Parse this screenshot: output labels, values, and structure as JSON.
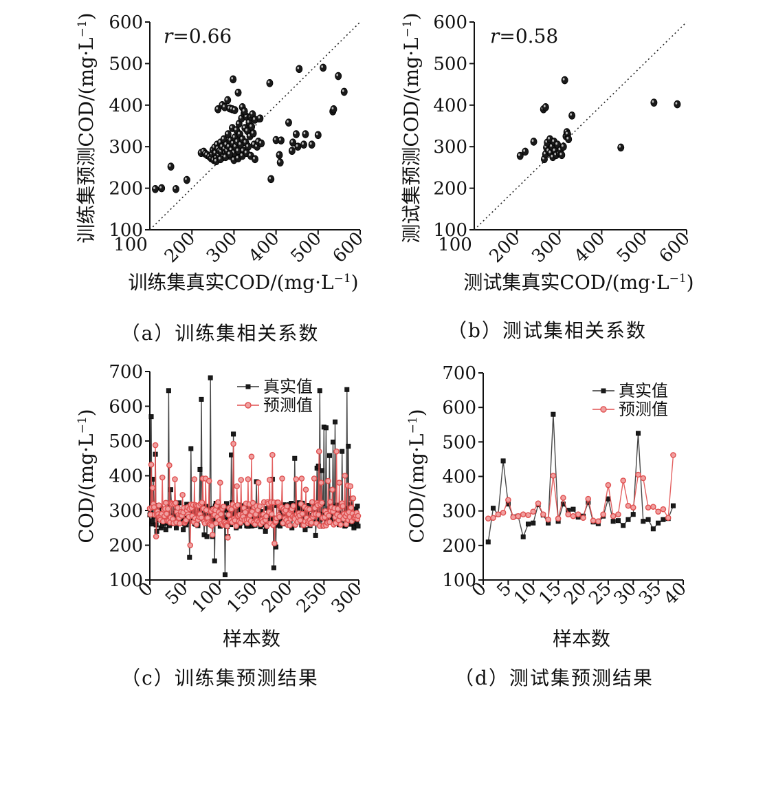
{
  "chart_data": [
    {
      "type": "scatter",
      "caption": "（a）训练集相关系数",
      "r_label": "r",
      "r_value": "=0.66",
      "xlabel": "训练集真实COD/(mg·L",
      "ylabel": "训练集预测COD/(mg·L",
      "unit_superscript": "−1",
      "unit_close": ")",
      "xlim": [
        100,
        600
      ],
      "ylim": [
        100,
        600
      ],
      "xticks": [
        "200",
        "300",
        "400",
        "500",
        "600"
      ],
      "yticks": [
        "100",
        "200",
        "300",
        "400",
        "500",
        "600"
      ],
      "diagonal": true,
      "points": [
        [
          113,
          198
        ],
        [
          128,
          200
        ],
        [
          150,
          252
        ],
        [
          162,
          198
        ],
        [
          188,
          220
        ],
        [
          222,
          285
        ],
        [
          228,
          288
        ],
        [
          232,
          283
        ],
        [
          236,
          280
        ],
        [
          242,
          276
        ],
        [
          246,
          272
        ],
        [
          248,
          282
        ],
        [
          250,
          292
        ],
        [
          252,
          268
        ],
        [
          254,
          298
        ],
        [
          256,
          285
        ],
        [
          258,
          272
        ],
        [
          260,
          305
        ],
        [
          262,
          295
        ],
        [
          264,
          280
        ],
        [
          266,
          290
        ],
        [
          268,
          310
        ],
        [
          270,
          288
        ],
        [
          272,
          300
        ],
        [
          274,
          275
        ],
        [
          276,
          318
        ],
        [
          278,
          295
        ],
        [
          280,
          285
        ],
        [
          282,
          305
        ],
        [
          284,
          290
        ],
        [
          286,
          330
        ],
        [
          288,
          300
        ],
        [
          290,
          278
        ],
        [
          292,
          315
        ],
        [
          294,
          292
        ],
        [
          296,
          345
        ],
        [
          298,
          308
        ],
        [
          300,
          285
        ],
        [
          302,
          322
        ],
        [
          304,
          300
        ],
        [
          306,
          340
        ],
        [
          308,
          312
        ],
        [
          310,
          290
        ],
        [
          312,
          355
        ],
        [
          314,
          330
        ],
        [
          316,
          305
        ],
        [
          318,
          368
        ],
        [
          320,
          318
        ],
        [
          322,
          290
        ],
        [
          324,
          380
        ],
        [
          326,
          345
        ],
        [
          328,
          310
        ],
        [
          330,
          372
        ],
        [
          332,
          338
        ],
        [
          334,
          300
        ],
        [
          336,
          358
        ],
        [
          338,
          325
        ],
        [
          340,
          372
        ],
        [
          342,
          348
        ],
        [
          344,
          378
        ],
        [
          346,
          332
        ],
        [
          348,
          305
        ],
        [
          350,
          365
        ],
        [
          262,
          390
        ],
        [
          272,
          400
        ],
        [
          278,
          395
        ],
        [
          285,
          412
        ],
        [
          290,
          392
        ],
        [
          296,
          390
        ],
        [
          302,
          388
        ],
        [
          298,
          462
        ],
        [
          310,
          430
        ],
        [
          320,
          395
        ],
        [
          325,
          385
        ],
        [
          258,
          265
        ],
        [
          268,
          270
        ],
        [
          280,
          275
        ],
        [
          290,
          282
        ],
        [
          300,
          268
        ],
        [
          310,
          272
        ],
        [
          320,
          278
        ],
        [
          330,
          285
        ],
        [
          340,
          278
        ],
        [
          350,
          270
        ],
        [
          355,
          300
        ],
        [
          358,
          312
        ],
        [
          362,
          368
        ],
        [
          365,
          308
        ],
        [
          385,
          453
        ],
        [
          388,
          222
        ],
        [
          400,
          316
        ],
        [
          408,
          280
        ],
        [
          410,
          262
        ],
        [
          412,
          315
        ],
        [
          430,
          358
        ],
        [
          438,
          290
        ],
        [
          440,
          310
        ],
        [
          448,
          330
        ],
        [
          452,
          300
        ],
        [
          455,
          487
        ],
        [
          466,
          305
        ],
        [
          470,
          330
        ],
        [
          485,
          305
        ],
        [
          500,
          328
        ],
        [
          512,
          490
        ],
        [
          535,
          385
        ],
        [
          537,
          390
        ],
        [
          548,
          470
        ],
        [
          562,
          432
        ]
      ]
    },
    {
      "type": "scatter",
      "caption": "（b）测试集相关系数",
      "r_label": "r",
      "r_value": "=0.58",
      "xlabel": "测试集真实COD/(mg·L",
      "ylabel": "测试集预测COD/(mg·L",
      "unit_superscript": "−1",
      "unit_close": ")",
      "xlim": [
        100,
        600
      ],
      "ylim": [
        100,
        600
      ],
      "xticks": [
        "200",
        "300",
        "400",
        "500",
        "600"
      ],
      "yticks": [
        "100",
        "200",
        "300",
        "400",
        "500",
        "600"
      ],
      "diagonal": true,
      "points": [
        [
          208,
          278
        ],
        [
          220,
          288
        ],
        [
          240,
          312
        ],
        [
          263,
          390
        ],
        [
          268,
          395
        ],
        [
          265,
          270
        ],
        [
          268,
          282
        ],
        [
          270,
          298
        ],
        [
          272,
          310
        ],
        [
          275,
          290
        ],
        [
          278,
          318
        ],
        [
          280,
          285
        ],
        [
          283,
          300
        ],
        [
          285,
          275
        ],
        [
          288,
          312
        ],
        [
          290,
          290
        ],
        [
          293,
          280
        ],
        [
          296,
          305
        ],
        [
          300,
          285
        ],
        [
          303,
          292
        ],
        [
          306,
          280
        ],
        [
          310,
          300
        ],
        [
          313,
          460
        ],
        [
          316,
          325
        ],
        [
          318,
          335
        ],
        [
          320,
          330
        ],
        [
          322,
          318
        ],
        [
          330,
          375
        ],
        [
          445,
          298
        ],
        [
          523,
          406
        ],
        [
          578,
          402
        ]
      ]
    },
    {
      "type": "line",
      "caption": "（c）训练集预测结果",
      "xlabel": "样本数",
      "ylabel": "COD/(mg·L",
      "unit_superscript": "−1",
      "unit_close": ")",
      "xlim": [
        0,
        300
      ],
      "ylim": [
        100,
        700
      ],
      "xticks": [
        "0",
        "50",
        "100",
        "150",
        "200",
        "250",
        "300"
      ],
      "yticks": [
        "100",
        "200",
        "300",
        "400",
        "500",
        "600",
        "700"
      ],
      "series": [
        {
          "name": "真实值",
          "color": "#333333",
          "marker": "square",
          "length": 300,
          "base": 288,
          "spikes": [
            [
              2,
              570
            ],
            [
              5,
              390
            ],
            [
              8,
              462
            ],
            [
              10,
              240
            ],
            [
              16,
              250
            ],
            [
              23,
              245
            ],
            [
              27,
              645
            ],
            [
              30,
              360
            ],
            [
              38,
              250
            ],
            [
              48,
              245
            ],
            [
              57,
              165
            ],
            [
              59,
              478
            ],
            [
              66,
              260
            ],
            [
              72,
              418
            ],
            [
              74,
              620
            ],
            [
              78,
              230
            ],
            [
              82,
              225
            ],
            [
              87,
              682
            ],
            [
              90,
              225
            ],
            [
              93,
              155
            ],
            [
              108,
              115
            ],
            [
              112,
              225
            ],
            [
              117,
              460
            ],
            [
              120,
              520
            ],
            [
              124,
              250
            ],
            [
              135,
              280
            ],
            [
              146,
              255
            ],
            [
              153,
              383
            ],
            [
              166,
              240
            ],
            [
              170,
              280
            ],
            [
              176,
              390
            ],
            [
              178,
              135
            ],
            [
              181,
              195
            ],
            [
              196,
              315
            ],
            [
              204,
              250
            ],
            [
              208,
              450
            ],
            [
              216,
              270
            ],
            [
              223,
              245
            ],
            [
              233,
              285
            ],
            [
              238,
              228
            ],
            [
              240,
              422
            ],
            [
              242,
              428
            ],
            [
              244,
              645
            ],
            [
              247,
              415
            ],
            [
              250,
              540
            ],
            [
              253,
              538
            ],
            [
              258,
              458
            ],
            [
              263,
              497
            ],
            [
              266,
              555
            ],
            [
              270,
              302
            ],
            [
              276,
              470
            ],
            [
              283,
              648
            ],
            [
              285,
              485
            ],
            [
              290,
              335
            ],
            [
              293,
              250
            ],
            [
              297,
              262
            ]
          ]
        },
        {
          "name": "预测值",
          "color": "#e05050",
          "marker": "circle",
          "length": 300,
          "base": 290,
          "spikes": [
            [
              2,
              432
            ],
            [
              4,
              365
            ],
            [
              8,
              488
            ],
            [
              9,
              225
            ],
            [
              18,
              395
            ],
            [
              28,
              430
            ],
            [
              36,
              390
            ],
            [
              47,
              345
            ],
            [
              58,
              200
            ],
            [
              64,
              390
            ],
            [
              76,
              392
            ],
            [
              80,
              392
            ],
            [
              85,
              385
            ],
            [
              90,
              230
            ],
            [
              101,
              380
            ],
            [
              112,
              222
            ],
            [
              120,
              492
            ],
            [
              125,
              370
            ],
            [
              131,
              388
            ],
            [
              141,
              390
            ],
            [
              146,
              455
            ],
            [
              156,
              380
            ],
            [
              172,
              388
            ],
            [
              176,
              460
            ],
            [
              179,
              205
            ],
            [
              190,
              392
            ],
            [
              200,
              290
            ],
            [
              203,
              300
            ],
            [
              210,
              390
            ],
            [
              218,
              392
            ],
            [
              224,
              360
            ],
            [
              236,
              392
            ],
            [
              243,
              470
            ],
            [
              246,
              380
            ],
            [
              256,
              385
            ],
            [
              262,
              360
            ],
            [
              268,
              470
            ],
            [
              272,
              380
            ],
            [
              280,
              400
            ],
            [
              284,
              372
            ],
            [
              288,
              370
            ],
            [
              292,
              335
            ]
          ]
        }
      ]
    },
    {
      "type": "line",
      "caption": "（d）测试集预测结果",
      "xlabel": "样本数",
      "ylabel": "COD/(mg·L",
      "unit_superscript": "−1",
      "unit_close": ")",
      "xlim": [
        0,
        40
      ],
      "ylim": [
        100,
        700
      ],
      "xticks": [
        "0",
        "5",
        "10",
        "15",
        "20",
        "25",
        "30",
        "35",
        "40"
      ],
      "yticks": [
        "100",
        "200",
        "300",
        "400",
        "500",
        "600",
        "700"
      ],
      "series": [
        {
          "name": "真实值",
          "color": "#333333",
          "marker": "square",
          "x": [
            1,
            2,
            3,
            4,
            5,
            6,
            7,
            8,
            9,
            10,
            11,
            12,
            13,
            14,
            15,
            16,
            17,
            18,
            19,
            20,
            21,
            22,
            23,
            24,
            25,
            26,
            27,
            28,
            29,
            30,
            31,
            32,
            33,
            34,
            35,
            36,
            37,
            38
          ],
          "values": [
            210,
            308,
            290,
            445,
            320,
            283,
            285,
            225,
            262,
            265,
            318,
            288,
            265,
            580,
            270,
            320,
            302,
            305,
            282,
            285,
            325,
            268,
            263,
            285,
            335,
            270,
            272,
            258,
            275,
            290,
            525,
            270,
            275,
            248,
            265,
            275,
            278,
            315
          ]
        },
        {
          "name": "预测值",
          "color": "#e05050",
          "marker": "circle",
          "x": [
            1,
            2,
            3,
            4,
            5,
            6,
            7,
            8,
            9,
            10,
            11,
            12,
            13,
            14,
            15,
            16,
            17,
            18,
            19,
            20,
            21,
            22,
            23,
            24,
            25,
            26,
            27,
            28,
            29,
            30,
            31,
            32,
            33,
            34,
            35,
            36,
            37,
            38
          ],
          "values": [
            278,
            280,
            290,
            295,
            332,
            282,
            285,
            290,
            288,
            298,
            322,
            290,
            275,
            402,
            278,
            338,
            290,
            285,
            290,
            280,
            335,
            272,
            270,
            290,
            375,
            285,
            290,
            388,
            315,
            310,
            405,
            395,
            310,
            312,
            298,
            305,
            280,
            462
          ]
        }
      ]
    }
  ]
}
